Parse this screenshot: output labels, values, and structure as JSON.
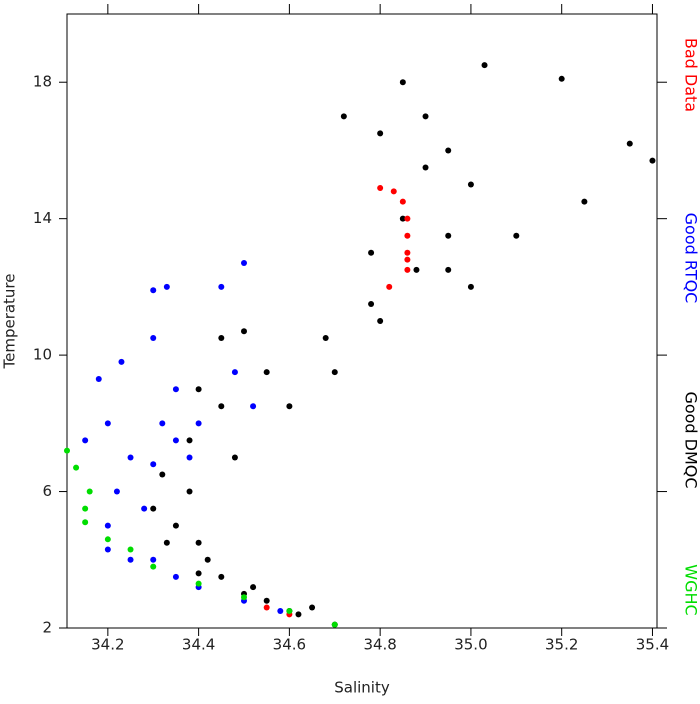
{
  "chart_data": {
    "type": "scatter",
    "x_label": "Salinity",
    "y_label": "Temperature",
    "xlim": [
      34.11,
      35.41
    ],
    "ylim": [
      2,
      20
    ],
    "xticks": [
      34.2,
      34.4,
      34.6,
      34.8,
      {
        "value": 35.0,
        "label": "35.0"
      },
      35.2,
      35.4
    ],
    "yticks": [
      2,
      6,
      10,
      14,
      18
    ],
    "series": [
      {
        "name": "Good DMQC",
        "color": "#000000",
        "x": [
          34.7,
          34.62,
          34.5,
          34.4,
          34.33,
          34.3,
          34.32,
          34.38,
          34.45,
          34.55,
          34.68,
          34.78,
          34.95,
          35.1,
          35.25,
          35.4,
          34.72,
          34.8,
          34.85,
          34.9,
          34.95,
          35.03,
          35.0,
          35.2,
          35.35,
          34.78,
          34.85,
          34.9,
          34.95,
          34.88,
          34.5,
          34.45,
          34.4,
          34.38,
          34.4,
          34.45,
          34.55,
          34.6,
          34.48,
          34.6,
          34.7,
          34.35,
          34.42,
          34.52,
          34.65,
          34.8,
          35.0
        ],
        "y": [
          2.1,
          2.4,
          3.0,
          3.6,
          4.5,
          5.5,
          6.5,
          7.5,
          8.5,
          9.5,
          10.5,
          11.5,
          12.5,
          13.5,
          14.5,
          15.7,
          17.0,
          16.5,
          18.0,
          17.0,
          16.0,
          18.5,
          15.0,
          18.1,
          16.2,
          13.0,
          14.0,
          15.5,
          13.5,
          12.5,
          10.7,
          10.5,
          9.0,
          6.0,
          4.5,
          3.5,
          2.8,
          2.5,
          7.0,
          8.5,
          9.5,
          5.0,
          4.0,
          3.2,
          2.6,
          11.0,
          12.0
        ]
      },
      {
        "name": "Good RTQC",
        "color": "#0000ff",
        "x": [
          34.25,
          34.2,
          34.22,
          34.25,
          34.2,
          34.18,
          34.3,
          34.33,
          34.45,
          34.5,
          34.3,
          34.35,
          34.4,
          34.35,
          34.3,
          34.28,
          34.3,
          34.35,
          34.4,
          34.5,
          34.58,
          34.48,
          34.52,
          34.23,
          34.15,
          34.2,
          34.32,
          34.38
        ],
        "y": [
          4.0,
          5.0,
          6.0,
          7.0,
          8.0,
          9.3,
          11.9,
          12.0,
          12.0,
          12.7,
          10.5,
          9.0,
          8.0,
          7.5,
          6.8,
          5.5,
          4.0,
          3.5,
          3.2,
          2.8,
          2.5,
          9.5,
          8.5,
          9.8,
          7.5,
          4.3,
          8.0,
          7.0
        ]
      },
      {
        "name": "Bad Data",
        "color": "#ff0000",
        "x": [
          34.8,
          34.83,
          34.85,
          34.86,
          34.86,
          34.86,
          34.86,
          34.86,
          34.82,
          34.6,
          34.55
        ],
        "y": [
          14.9,
          14.8,
          14.5,
          14.0,
          13.5,
          13.0,
          12.8,
          12.5,
          12.0,
          2.4,
          2.6
        ]
      },
      {
        "name": "WGHC",
        "color": "#00dd00",
        "x": [
          34.11,
          34.13,
          34.16,
          34.15,
          34.15,
          34.2,
          34.25,
          34.3,
          34.4,
          34.5,
          34.6,
          34.7
        ],
        "y": [
          7.2,
          6.7,
          6.0,
          5.5,
          5.1,
          4.6,
          4.3,
          3.8,
          3.3,
          2.9,
          2.5,
          2.1
        ]
      }
    ]
  }
}
